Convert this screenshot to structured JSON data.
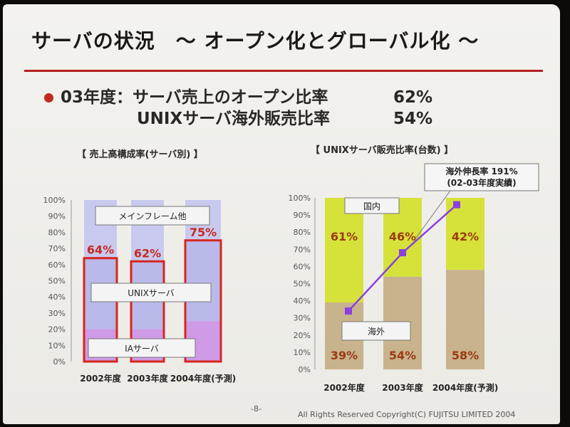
{
  "slide": {
    "title": "サーバの状況　～ オープン化とグローバル化 ～",
    "bullet_line1_label": "03年度：サーバ売上のオープン比率",
    "bullet_line1_value": "62%",
    "bullet_line2_label": "UNIXサーバ海外販売比率",
    "bullet_line2_value": "54%",
    "footer_page": "-8-",
    "footer_copyright": "All Rights Reserved Copyright(C) FUJITSU LIMITED 2004"
  },
  "chart_data": [
    {
      "type": "bar",
      "title": "【 売上高構成率(サーバ別) 】",
      "categories": [
        "2002年度",
        "2003年度",
        "2004年度(予測)"
      ],
      "ylim": [
        0,
        100
      ],
      "yticks": [
        "0%",
        "10%",
        "20%",
        "30%",
        "40%",
        "50%",
        "60%",
        "70%",
        "80%",
        "90%",
        "100%"
      ],
      "open_ratio_labels": [
        "64%",
        "62%",
        "75%"
      ],
      "open_ratio_values": [
        64,
        62,
        75
      ],
      "ia_values": [
        20,
        20,
        25
      ],
      "annotations": [
        "メインフレーム他",
        "UNIXサーバ",
        "IAサーバ"
      ],
      "colors": {
        "mainframe": "#c9c9ef",
        "unix": "#b9b9ea",
        "ia": "#cf9ae6",
        "highlight": "#d7261e"
      }
    },
    {
      "type": "bar",
      "title": "【 UNIXサーバ販売比率(台数) 】",
      "categories": [
        "2002年度",
        "2003年度",
        "2004年度(予測)"
      ],
      "ylim": [
        0,
        100
      ],
      "yticks": [
        "0%",
        "10%",
        "20%",
        "30%",
        "40%",
        "50%",
        "60%",
        "70%",
        "80%",
        "90%",
        "100%"
      ],
      "series": [
        {
          "name": "海外",
          "values": [
            39,
            54,
            58
          ],
          "labels": [
            "39%",
            "54%",
            "58%"
          ]
        },
        {
          "name": "国内",
          "values": [
            61,
            46,
            42
          ],
          "labels": [
            "61%",
            "46%",
            "42%"
          ]
        }
      ],
      "growth_line": {
        "label_line1": "海外伸長率 191%",
        "label_line2": "(02-03年度実績)",
        "values": [
          34,
          68,
          96
        ]
      },
      "colors": {
        "overseas": "#c8b38c",
        "domestic": "#d6e23a",
        "line": "#8a3fe0"
      }
    }
  ]
}
